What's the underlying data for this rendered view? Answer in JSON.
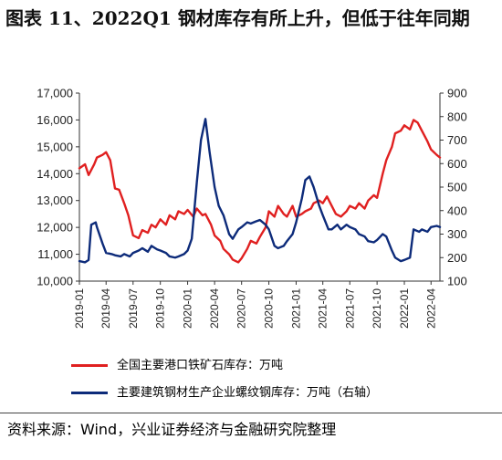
{
  "title": "图表 11、2022Q1 钢材库存有所上升，但低于往年同期",
  "source": "资料来源：Wind，兴业证券经济与金融研究院整理",
  "chart_data": {
    "type": "line",
    "title": "图表 11、2022Q1 钢材库存有所上升，但低于往年同期",
    "x_start": "2019-01",
    "x_end": "2022-05",
    "x_ticks": [
      "2019-01",
      "2019-04",
      "2019-07",
      "2019-10",
      "2020-01",
      "2020-04",
      "2020-07",
      "2020-10",
      "2021-01",
      "2021-04",
      "2021-07",
      "2021-10",
      "2022-01",
      "2022-04"
    ],
    "left_axis": {
      "ylim": [
        10000,
        17000
      ],
      "ticks": [
        "10,000",
        "11,000",
        "12,000",
        "13,000",
        "14,000",
        "15,000",
        "16,000",
        "17,000"
      ]
    },
    "right_axis": {
      "ylim": [
        100,
        900
      ],
      "ticks": [
        "100",
        "200",
        "300",
        "400",
        "500",
        "600",
        "700",
        "800",
        "900"
      ]
    },
    "legend_position": "bottom",
    "series": [
      {
        "name": "全国主要港口铁矿石库存：万吨",
        "axis": "left",
        "color": "#e02020",
        "points": [
          [
            "2019-01",
            14200
          ],
          [
            "2019-01-20",
            14350
          ],
          [
            "2019-02",
            13950
          ],
          [
            "2019-02-20",
            14350
          ],
          [
            "2019-03",
            14600
          ],
          [
            "2019-03-20",
            14700
          ],
          [
            "2019-04",
            14800
          ],
          [
            "2019-04-15",
            14500
          ],
          [
            "2019-05",
            13450
          ],
          [
            "2019-05-15",
            13400
          ],
          [
            "2019-06",
            12900
          ],
          [
            "2019-06-15",
            12450
          ],
          [
            "2019-07",
            11700
          ],
          [
            "2019-07-20",
            11600
          ],
          [
            "2019-08",
            11900
          ],
          [
            "2019-08-20",
            11800
          ],
          [
            "2019-09",
            12100
          ],
          [
            "2019-09-15",
            12000
          ],
          [
            "2019-10",
            12300
          ],
          [
            "2019-10-20",
            12100
          ],
          [
            "2019-11",
            12450
          ],
          [
            "2019-11-20",
            12300
          ],
          [
            "2019-12",
            12600
          ],
          [
            "2019-12-20",
            12500
          ],
          [
            "2020-01",
            12650
          ],
          [
            "2020-01-20",
            12400
          ],
          [
            "2020-02",
            12700
          ],
          [
            "2020-02-20",
            12450
          ],
          [
            "2020-03",
            12500
          ],
          [
            "2020-03-20",
            12100
          ],
          [
            "2020-04",
            11700
          ],
          [
            "2020-04-20",
            11500
          ],
          [
            "2020-05",
            11200
          ],
          [
            "2020-05-20",
            11000
          ],
          [
            "2020-06",
            10800
          ],
          [
            "2020-06-20",
            10700
          ],
          [
            "2020-07",
            10850
          ],
          [
            "2020-07-20",
            11200
          ],
          [
            "2020-08",
            11500
          ],
          [
            "2020-08-20",
            11400
          ],
          [
            "2020-09",
            11650
          ],
          [
            "2020-09-20",
            12000
          ],
          [
            "2020-10",
            12600
          ],
          [
            "2020-10-20",
            12400
          ],
          [
            "2020-11",
            12800
          ],
          [
            "2020-11-20",
            12500
          ],
          [
            "2020-12",
            12400
          ],
          [
            "2020-12-20",
            12800
          ],
          [
            "2021-01",
            12400
          ],
          [
            "2021-01-20",
            12500
          ],
          [
            "2021-02",
            12600
          ],
          [
            "2021-02-20",
            12700
          ],
          [
            "2021-03",
            12900
          ],
          [
            "2021-03-20",
            13000
          ],
          [
            "2021-04",
            12900
          ],
          [
            "2021-04-15",
            13150
          ],
          [
            "2021-05",
            12800
          ],
          [
            "2021-05-15",
            12500
          ],
          [
            "2021-06",
            12400
          ],
          [
            "2021-06-20",
            12600
          ],
          [
            "2021-07",
            12800
          ],
          [
            "2021-07-20",
            12700
          ],
          [
            "2021-08",
            12900
          ],
          [
            "2021-08-20",
            12700
          ],
          [
            "2021-09",
            13000
          ],
          [
            "2021-09-20",
            13200
          ],
          [
            "2021-10",
            13100
          ],
          [
            "2021-10-20",
            14000
          ],
          [
            "2021-11",
            14500
          ],
          [
            "2021-11-20",
            15000
          ],
          [
            "2021-12",
            15500
          ],
          [
            "2021-12-20",
            15600
          ],
          [
            "2022-01",
            15800
          ],
          [
            "2022-01-20",
            15650
          ],
          [
            "2022-02",
            16000
          ],
          [
            "2022-02-15",
            15900
          ],
          [
            "2022-03",
            15600
          ],
          [
            "2022-03-20",
            15200
          ],
          [
            "2022-04",
            14900
          ],
          [
            "2022-04-20",
            14700
          ],
          [
            "2022-05",
            14600
          ]
        ]
      },
      {
        "name": "主要建筑钢材生产企业螺纹钢库存：万吨（右轴）",
        "axis": "right",
        "color": "#0d2b7a",
        "points": [
          [
            "2019-01",
            185
          ],
          [
            "2019-01-20",
            180
          ],
          [
            "2019-02",
            190
          ],
          [
            "2019-02-10",
            340
          ],
          [
            "2019-02-25",
            350
          ],
          [
            "2019-03",
            330
          ],
          [
            "2019-03-20",
            260
          ],
          [
            "2019-04",
            220
          ],
          [
            "2019-04-20",
            215
          ],
          [
            "2019-05",
            210
          ],
          [
            "2019-05-20",
            205
          ],
          [
            "2019-06",
            215
          ],
          [
            "2019-06-20",
            205
          ],
          [
            "2019-07",
            220
          ],
          [
            "2019-07-20",
            230
          ],
          [
            "2019-08",
            240
          ],
          [
            "2019-08-20",
            225
          ],
          [
            "2019-09",
            250
          ],
          [
            "2019-09-20",
            235
          ],
          [
            "2019-10",
            230
          ],
          [
            "2019-10-20",
            220
          ],
          [
            "2019-11",
            205
          ],
          [
            "2019-11-20",
            200
          ],
          [
            "2019-12",
            205
          ],
          [
            "2019-12-20",
            215
          ],
          [
            "2020-01",
            230
          ],
          [
            "2020-01-15",
            280
          ],
          [
            "2020-02",
            520
          ],
          [
            "2020-02-15",
            700
          ],
          [
            "2020-03",
            790
          ],
          [
            "2020-03-15",
            650
          ],
          [
            "2020-04",
            500
          ],
          [
            "2020-04-15",
            420
          ],
          [
            "2020-05",
            380
          ],
          [
            "2020-05-20",
            300
          ],
          [
            "2020-06",
            280
          ],
          [
            "2020-06-20",
            320
          ],
          [
            "2020-07",
            330
          ],
          [
            "2020-07-20",
            350
          ],
          [
            "2020-08",
            345
          ],
          [
            "2020-08-20",
            355
          ],
          [
            "2020-09",
            360
          ],
          [
            "2020-09-20",
            340
          ],
          [
            "2020-10",
            320
          ],
          [
            "2020-10-20",
            250
          ],
          [
            "2020-11",
            240
          ],
          [
            "2020-11-20",
            250
          ],
          [
            "2020-12",
            270
          ],
          [
            "2020-12-20",
            300
          ],
          [
            "2021-01",
            350
          ],
          [
            "2021-01-20",
            450
          ],
          [
            "2021-02",
            530
          ],
          [
            "2021-02-15",
            545
          ],
          [
            "2021-03",
            500
          ],
          [
            "2021-03-20",
            420
          ],
          [
            "2021-04",
            380
          ],
          [
            "2021-04-20",
            320
          ],
          [
            "2021-05",
            320
          ],
          [
            "2021-05-20",
            340
          ],
          [
            "2021-06",
            320
          ],
          [
            "2021-06-20",
            340
          ],
          [
            "2021-07",
            330
          ],
          [
            "2021-07-20",
            320
          ],
          [
            "2021-08",
            300
          ],
          [
            "2021-08-20",
            290
          ],
          [
            "2021-09",
            270
          ],
          [
            "2021-09-20",
            265
          ],
          [
            "2021-10",
            275
          ],
          [
            "2021-10-20",
            300
          ],
          [
            "2021-11",
            290
          ],
          [
            "2021-11-20",
            230
          ],
          [
            "2021-12",
            200
          ],
          [
            "2021-12-20",
            185
          ],
          [
            "2022-01",
            190
          ],
          [
            "2022-01-20",
            200
          ],
          [
            "2022-02",
            320
          ],
          [
            "2022-02-20",
            310
          ],
          [
            "2022-03",
            320
          ],
          [
            "2022-03-20",
            310
          ],
          [
            "2022-04",
            330
          ],
          [
            "2022-04-20",
            335
          ],
          [
            "2022-05",
            330
          ]
        ]
      }
    ]
  }
}
